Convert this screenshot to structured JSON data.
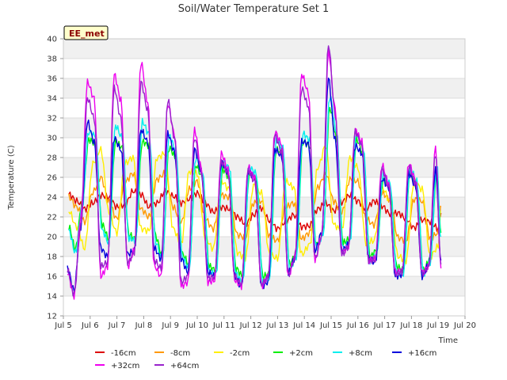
{
  "chart_data": {
    "type": "line",
    "title": "Soil/Water Temperature Set 1",
    "xlabel": "Time",
    "ylabel": "Temperature (C)",
    "badge": "EE_met",
    "xlim": [
      5,
      20
    ],
    "ylim": [
      12,
      40
    ],
    "x_tick_values": [
      5,
      6,
      7,
      8,
      9,
      10,
      11,
      12,
      13,
      14,
      15,
      16,
      17,
      18,
      19,
      20
    ],
    "x_tick_labels": [
      "Jul 5",
      "Jul 6",
      "Jul 7",
      "Jul 8",
      "Jul 9",
      "Jul 10",
      "Jul 11",
      "Jul 12",
      "Jul 13",
      "Jul 14",
      "Jul 15",
      "Jul 16",
      "Jul 17",
      "Jul 18",
      "Jul 19",
      "Jul 20"
    ],
    "y_ticks": [
      12,
      14,
      16,
      18,
      20,
      22,
      24,
      26,
      28,
      30,
      32,
      34,
      36,
      38,
      40
    ],
    "grid": "horizontal bands",
    "legend_position": "bottom",
    "series": [
      {
        "name": "-16cm",
        "color": "#dd0000",
        "x": [
          5.2,
          5.5,
          5.8,
          6.1,
          6.4,
          6.7,
          7.0,
          7.3,
          7.6,
          7.9,
          8.2,
          8.5,
          8.8,
          9.1,
          9.4,
          9.7,
          10.0,
          10.3,
          10.6,
          10.9,
          11.2,
          11.5,
          11.8,
          12.1,
          12.4,
          12.7,
          13.0,
          13.3,
          13.6,
          13.9,
          14.2,
          14.5,
          14.8,
          15.1,
          15.4,
          15.7,
          16.0,
          16.3,
          16.6,
          16.9,
          17.2,
          17.5,
          17.8,
          18.1,
          18.4,
          18.7,
          19.0,
          19.1
        ],
        "y": [
          24.3,
          23.6,
          22.8,
          23.4,
          24.2,
          24.0,
          23.0,
          23.2,
          24.6,
          24.3,
          23.0,
          23.4,
          24.6,
          24.1,
          23.4,
          23.8,
          24.4,
          23.4,
          22.5,
          23.0,
          22.8,
          22.0,
          21.3,
          22.2,
          22.9,
          21.6,
          20.8,
          21.5,
          22.2,
          21.0,
          21.1,
          22.8,
          23.4,
          22.6,
          23.5,
          24.2,
          23.6,
          22.8,
          23.6,
          23.1,
          22.3,
          22.4,
          21.8,
          20.9,
          21.7,
          21.5,
          20.8,
          22.4
        ]
      },
      {
        "name": "-8cm",
        "color": "#ff9900",
        "x": [
          5.2,
          5.5,
          5.8,
          6.1,
          6.4,
          6.7,
          7.0,
          7.3,
          7.6,
          7.9,
          8.2,
          8.5,
          8.8,
          9.1,
          9.4,
          9.7,
          10.0,
          10.3,
          10.6,
          10.9,
          11.2,
          11.5,
          11.8,
          12.1,
          12.4,
          12.7,
          13.0,
          13.3,
          13.6,
          13.9,
          14.2,
          14.5,
          14.8,
          15.1,
          15.4,
          15.7,
          16.0,
          16.3,
          16.6,
          16.9,
          17.2,
          17.5,
          17.8,
          18.1,
          18.4,
          18.7,
          19.0,
          19.1
        ],
        "y": [
          24.0,
          23.0,
          21.5,
          24.5,
          26.0,
          23.5,
          21.8,
          25.5,
          26.4,
          22.8,
          22.0,
          25.8,
          26.4,
          23.0,
          21.4,
          24.8,
          25.6,
          21.8,
          20.8,
          24.2,
          24.0,
          20.2,
          19.9,
          23.4,
          23.6,
          20.0,
          19.6,
          23.0,
          23.4,
          19.8,
          20.4,
          25.0,
          26.4,
          23.6,
          22.4,
          25.8,
          25.6,
          21.8,
          21.2,
          24.4,
          23.8,
          19.9,
          19.6,
          23.8,
          23.6,
          19.8,
          20.4,
          23.0
        ]
      },
      {
        "name": "-2cm",
        "color": "#ffee00",
        "x": [
          5.2,
          5.5,
          5.8,
          6.1,
          6.4,
          6.7,
          7.0,
          7.3,
          7.6,
          7.9,
          8.2,
          8.5,
          8.8,
          9.1,
          9.4,
          9.7,
          10.0,
          10.3,
          10.6,
          10.9,
          11.2,
          11.5,
          11.8,
          12.1,
          12.4,
          12.7,
          13.0,
          13.3,
          13.6,
          13.9,
          14.2,
          14.5,
          14.8,
          15.1,
          15.4,
          15.7,
          16.0,
          16.3,
          16.6,
          16.9,
          17.2,
          17.5,
          17.8,
          18.1,
          18.4,
          18.7,
          19.0,
          19.1
        ],
        "y": [
          22.6,
          21.0,
          18.8,
          27.4,
          28.8,
          22.4,
          20.4,
          27.4,
          28.0,
          20.8,
          20.6,
          28.0,
          28.4,
          20.8,
          19.2,
          26.6,
          26.4,
          19.8,
          18.8,
          25.6,
          24.8,
          18.4,
          17.8,
          25.2,
          24.4,
          18.2,
          17.8,
          25.6,
          25.0,
          18.2,
          19.2,
          27.0,
          29.2,
          21.2,
          20.6,
          28.0,
          27.0,
          19.4,
          19.6,
          25.0,
          23.6,
          18.0,
          17.6,
          25.6,
          24.8,
          18.0,
          19.0,
          22.6
        ]
      },
      {
        "name": "+2cm",
        "color": "#00ee00",
        "x": [
          5.2,
          5.45,
          5.7,
          5.95,
          6.2,
          6.45,
          6.7,
          6.95,
          7.2,
          7.45,
          7.7,
          7.95,
          8.2,
          8.45,
          8.7,
          8.95,
          9.2,
          9.45,
          9.7,
          9.95,
          10.2,
          10.45,
          10.7,
          10.95,
          11.2,
          11.45,
          11.7,
          11.95,
          12.2,
          12.45,
          12.7,
          12.95,
          13.2,
          13.45,
          13.7,
          13.95,
          14.2,
          14.45,
          14.7,
          14.95,
          15.2,
          15.45,
          15.7,
          15.95,
          16.2,
          16.45,
          16.7,
          16.95,
          17.2,
          17.45,
          17.7,
          17.95,
          18.2,
          18.45,
          18.7,
          18.95,
          19.1
        ],
        "y": [
          21.0,
          18.8,
          23.4,
          29.8,
          29.4,
          21.2,
          19.8,
          29.6,
          29.0,
          20.2,
          19.8,
          29.6,
          29.2,
          20.0,
          18.0,
          29.0,
          28.0,
          18.2,
          17.2,
          27.2,
          26.0,
          17.0,
          16.6,
          26.8,
          26.0,
          16.8,
          16.0,
          26.4,
          25.8,
          16.0,
          16.2,
          28.8,
          28.4,
          17.2,
          18.4,
          29.6,
          29.2,
          19.2,
          20.6,
          33.0,
          30.0,
          19.4,
          19.8,
          29.8,
          28.4,
          18.0,
          18.6,
          25.8,
          24.8,
          17.0,
          16.6,
          26.4,
          25.0,
          16.6,
          17.8,
          26.6,
          20.4
        ]
      },
      {
        "name": "+8cm",
        "color": "#00eeee",
        "x": [
          5.2,
          5.45,
          5.7,
          5.95,
          6.2,
          6.45,
          6.7,
          6.95,
          7.2,
          7.45,
          7.7,
          7.95,
          8.2,
          8.45,
          8.7,
          8.95,
          9.2,
          9.45,
          9.7,
          9.95,
          10.2,
          10.45,
          10.7,
          10.95,
          11.2,
          11.45,
          11.7,
          11.95,
          12.2,
          12.45,
          12.7,
          12.95,
          13.2,
          13.45,
          13.7,
          13.95,
          14.2,
          14.45,
          14.7,
          14.95,
          15.2,
          15.45,
          15.7,
          15.95,
          16.2,
          16.45,
          16.7,
          16.95,
          17.2,
          17.45,
          17.7,
          17.95,
          18.2,
          18.45,
          18.7,
          18.95,
          19.1
        ],
        "y": [
          20.6,
          18.4,
          23.0,
          30.6,
          30.2,
          20.6,
          19.4,
          31.2,
          30.0,
          19.8,
          19.6,
          31.6,
          30.4,
          19.4,
          17.6,
          30.2,
          28.8,
          17.8,
          16.8,
          28.0,
          26.4,
          16.4,
          16.2,
          27.6,
          27.0,
          16.2,
          15.4,
          27.0,
          26.4,
          15.4,
          15.8,
          29.8,
          29.0,
          16.6,
          18.0,
          30.4,
          29.8,
          18.8,
          20.2,
          34.2,
          30.6,
          18.8,
          19.4,
          30.4,
          29.0,
          17.4,
          18.2,
          26.4,
          25.4,
          16.4,
          16.2,
          27.0,
          25.6,
          16.2,
          17.4,
          27.2,
          20.0
        ]
      },
      {
        "name": "+16cm",
        "color": "#0000dd",
        "x": [
          5.15,
          5.4,
          5.65,
          5.9,
          6.15,
          6.4,
          6.65,
          6.9,
          7.15,
          7.4,
          7.65,
          7.9,
          8.15,
          8.4,
          8.65,
          8.9,
          9.15,
          9.4,
          9.65,
          9.9,
          10.15,
          10.4,
          10.65,
          10.9,
          11.15,
          11.4,
          11.65,
          11.9,
          12.15,
          12.4,
          12.65,
          12.9,
          13.15,
          13.4,
          13.65,
          13.9,
          14.15,
          14.4,
          14.65,
          14.9,
          15.15,
          15.4,
          15.65,
          15.9,
          16.15,
          16.4,
          16.65,
          16.9,
          17.15,
          17.4,
          17.65,
          17.9,
          18.15,
          18.4,
          18.65,
          18.9,
          19.1
        ],
        "y": [
          16.8,
          14.6,
          21.0,
          31.6,
          29.6,
          18.8,
          18.0,
          30.0,
          28.8,
          18.2,
          18.6,
          30.8,
          29.6,
          18.8,
          17.8,
          30.4,
          28.6,
          17.8,
          16.4,
          28.8,
          26.6,
          16.4,
          16.0,
          27.4,
          26.6,
          16.0,
          15.0,
          26.6,
          26.0,
          15.0,
          15.4,
          28.8,
          28.2,
          16.4,
          17.8,
          29.6,
          29.4,
          18.6,
          20.4,
          36.0,
          29.8,
          18.6,
          19.2,
          29.2,
          28.4,
          17.8,
          17.4,
          25.8,
          25.0,
          16.0,
          16.2,
          26.4,
          25.2,
          16.0,
          17.2,
          26.8,
          17.6
        ]
      },
      {
        "name": "+32cm",
        "color": "#ee00ee",
        "x": [
          5.15,
          5.4,
          5.65,
          5.9,
          6.15,
          6.4,
          6.65,
          6.9,
          7.15,
          7.4,
          7.65,
          7.9,
          8.15,
          8.4,
          8.65,
          8.9,
          9.15,
          9.4,
          9.65,
          9.9,
          10.15,
          10.4,
          10.65,
          10.9,
          11.15,
          11.4,
          11.65,
          11.9,
          12.15,
          12.4,
          12.65,
          12.9,
          13.15,
          13.4,
          13.65,
          13.9,
          14.15,
          14.4,
          14.65,
          14.9,
          15.15,
          15.4,
          15.65,
          15.9,
          16.15,
          16.4,
          16.65,
          16.9,
          17.15,
          17.4,
          17.65,
          17.9,
          18.15,
          18.4,
          18.65,
          18.9,
          19.1
        ],
        "y": [
          16.4,
          14.0,
          22.0,
          35.6,
          34.0,
          16.0,
          17.0,
          36.4,
          33.8,
          17.0,
          18.6,
          37.6,
          33.6,
          17.0,
          16.0,
          33.4,
          30.4,
          15.0,
          15.4,
          30.8,
          27.0,
          15.4,
          15.6,
          28.4,
          26.8,
          15.6,
          15.0,
          27.0,
          26.0,
          15.0,
          16.0,
          30.6,
          29.4,
          16.0,
          18.0,
          36.4,
          34.6,
          17.6,
          20.2,
          38.6,
          33.0,
          18.4,
          19.0,
          30.8,
          29.6,
          17.6,
          17.8,
          27.2,
          25.4,
          16.4,
          16.6,
          27.4,
          25.8,
          16.4,
          17.0,
          29.0,
          16.8
        ]
      },
      {
        "name": "+64cm",
        "color": "#9922cc",
        "x": [
          5.15,
          5.4,
          5.65,
          5.9,
          6.15,
          6.4,
          6.65,
          6.9,
          7.15,
          7.4,
          7.65,
          7.9,
          8.15,
          8.4,
          8.65,
          8.9,
          9.15,
          9.4,
          9.65,
          9.9,
          10.15,
          10.4,
          10.65,
          10.9,
          11.15,
          11.4,
          11.65,
          11.9,
          12.15,
          12.4,
          12.65,
          12.9,
          13.15,
          13.4,
          13.65,
          13.9,
          14.15,
          14.4,
          14.65,
          14.9,
          15.15,
          15.4,
          15.65,
          15.9,
          16.15,
          16.4,
          16.65,
          16.9,
          17.15,
          17.4,
          17.65,
          17.9,
          18.15,
          18.4,
          18.65,
          18.9,
          19.1
        ],
        "y": [
          16.6,
          14.2,
          21.0,
          34.0,
          32.0,
          17.0,
          17.4,
          35.0,
          32.0,
          17.4,
          18.4,
          35.6,
          32.8,
          17.6,
          16.8,
          33.8,
          30.0,
          15.4,
          16.0,
          30.0,
          26.6,
          15.8,
          16.0,
          27.6,
          26.4,
          16.0,
          15.2,
          26.6,
          25.6,
          15.2,
          16.0,
          30.2,
          28.6,
          16.2,
          17.8,
          35.0,
          33.2,
          17.8,
          20.0,
          39.4,
          32.4,
          18.2,
          19.0,
          30.6,
          29.2,
          17.6,
          17.6,
          26.8,
          25.0,
          16.2,
          16.4,
          27.0,
          25.4,
          16.2,
          17.0,
          28.4,
          17.2
        ]
      }
    ]
  }
}
